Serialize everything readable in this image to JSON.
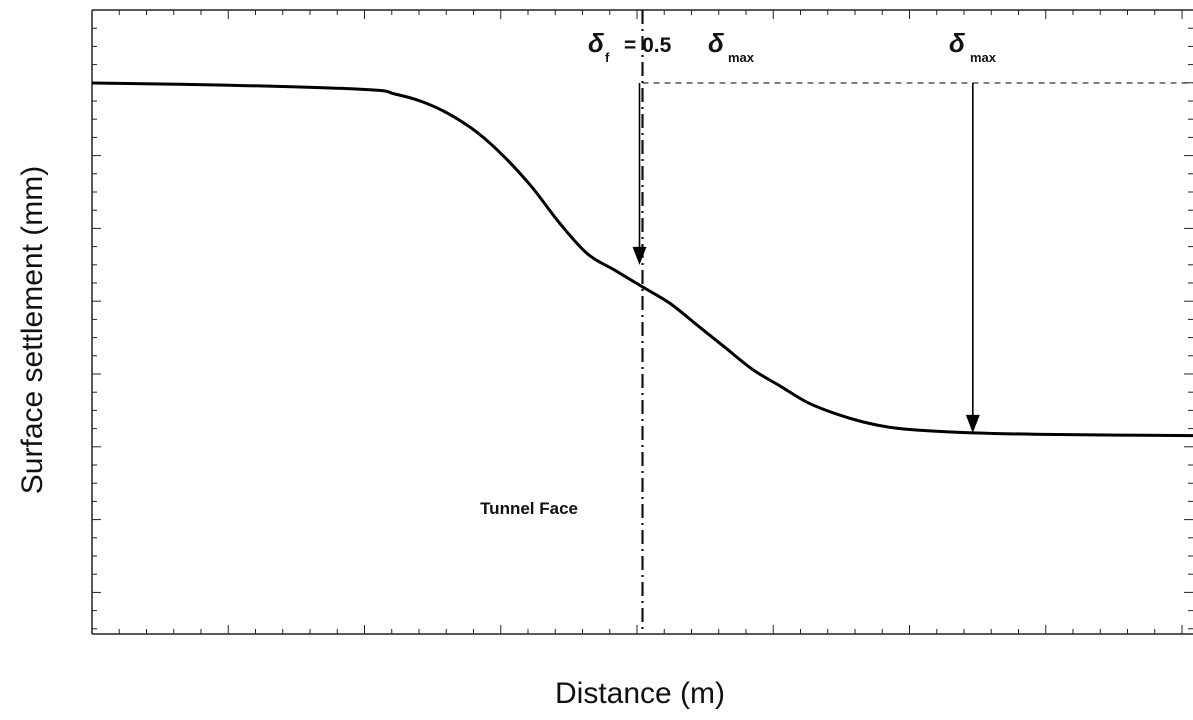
{
  "chart_data": {
    "type": "line",
    "title": "",
    "xlabel": "Distance (m)",
    "ylabel": "Surface settlement (mm)",
    "x_ticks_labeled": false,
    "y_ticks_labeled": false,
    "grid": false,
    "legend": "none",
    "xlim": [
      -1,
      1
    ],
    "ylim": [
      -1,
      0
    ],
    "series": [
      {
        "x": [
          -1.0,
          -0.75,
          -0.5,
          -0.45,
          -0.4,
          -0.35,
          -0.3,
          -0.25,
          -0.2,
          -0.15,
          -0.1,
          -0.05,
          0.0,
          0.05,
          0.1,
          0.15,
          0.2,
          0.25,
          0.3,
          0.35,
          0.4,
          0.45,
          0.5,
          0.6,
          0.75,
          1.0
        ],
        "y": [
          0.0,
          -0.004,
          -0.012,
          -0.02,
          -0.034,
          -0.057,
          -0.09,
          -0.135,
          -0.19,
          -0.255,
          -0.31,
          -0.34,
          -0.37,
          -0.4,
          -0.44,
          -0.48,
          -0.52,
          -0.55,
          -0.58,
          -0.6,
          -0.615,
          -0.625,
          -0.63,
          -0.635,
          -0.638,
          -0.64
        ]
      }
    ],
    "annotations": {
      "face_x": 0.0,
      "face_label": "Tunnel Face",
      "delta_f_symbol": "δ",
      "delta_f_sub": "f",
      "delta_f_eq": "= 0.5",
      "delta_max_symbol": "δ",
      "delta_max_sub": "max",
      "delta_f_y": -0.33,
      "delta_max_x": 0.6,
      "delta_max_y": -0.635
    }
  }
}
